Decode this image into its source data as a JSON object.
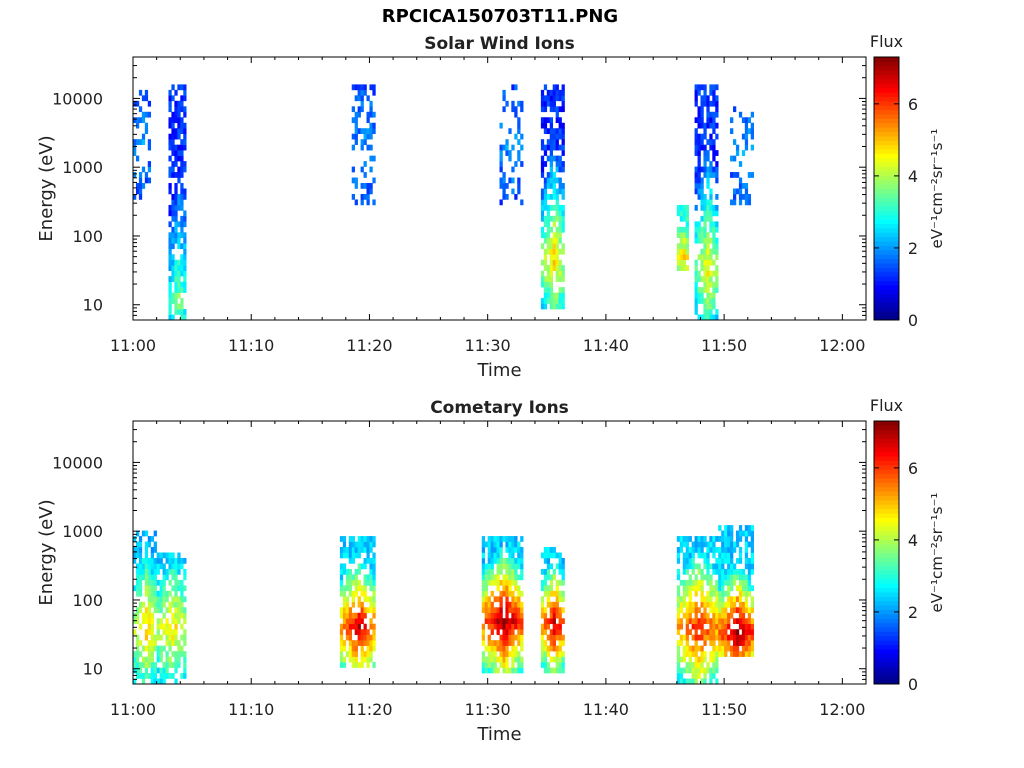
{
  "figure": {
    "title": "RPCICA150703T11.PNG"
  },
  "chart_data": [
    {
      "type": "heatmap",
      "title": "Solar Wind Ions",
      "xlabel": "Time",
      "ylabel": "Energy (eV)",
      "x_ticks": [
        "11:00",
        "11:10",
        "11:20",
        "11:30",
        "11:40",
        "11:50",
        "12:00"
      ],
      "x_range": [
        "11:00",
        "12:02"
      ],
      "y_scale": "log",
      "y_ticks": [
        10,
        100,
        1000,
        10000
      ],
      "y_range": [
        6,
        40000
      ],
      "colorbar": {
        "label": "Flux",
        "unit": "eV⁻¹cm⁻²sr⁻¹s⁻¹",
        "ticks": [
          0,
          2,
          4,
          6
        ],
        "range": [
          0,
          7.3
        ]
      },
      "bursts": [
        {
          "start": "11:00",
          "end": "11:01.5",
          "e_min": 300,
          "e_max": 15000,
          "flux_peak": 2.0,
          "flux_low": 1.4,
          "e_peak": 2000,
          "density": 0.35
        },
        {
          "start": "11:03",
          "end": "11:04.5",
          "e_min": 6,
          "e_max": 15000,
          "flux_peak": 3.6,
          "flux_low": 1.2,
          "e_peak": 12,
          "density": 0.75
        },
        {
          "start": "11:18.5",
          "end": "11:20.5",
          "e_min": 300,
          "e_max": 15000,
          "flux_peak": 2.0,
          "flux_low": 1.5,
          "e_peak": 2000,
          "density": 0.4
        },
        {
          "start": "11:31",
          "end": "11:33",
          "e_min": 300,
          "e_max": 15000,
          "flux_peak": 2.0,
          "flux_low": 1.4,
          "e_peak": 2000,
          "density": 0.35
        },
        {
          "start": "11:34.5",
          "end": "11:36.5",
          "e_min": 8,
          "e_max": 15000,
          "flux_peak": 4.9,
          "flux_low": 1.2,
          "e_peak": 45,
          "density": 0.75
        },
        {
          "start": "11:46",
          "end": "11:47",
          "e_min": 30,
          "e_max": 300,
          "flux_peak": 4.8,
          "flux_low": 3.0,
          "e_peak": 50,
          "density": 0.8
        },
        {
          "start": "11:47.5",
          "end": "11:49.5",
          "e_min": 6,
          "e_max": 15000,
          "flux_peak": 4.6,
          "flux_low": 1.2,
          "e_peak": 35,
          "density": 0.75
        },
        {
          "start": "11:50.5",
          "end": "11:52.5",
          "e_min": 300,
          "e_max": 8000,
          "flux_peak": 2.0,
          "flux_low": 1.5,
          "e_peak": 2000,
          "density": 0.35
        }
      ]
    },
    {
      "type": "heatmap",
      "title": "Cometary Ions",
      "xlabel": "Time",
      "ylabel": "Energy (eV)",
      "x_ticks": [
        "11:00",
        "11:10",
        "11:20",
        "11:30",
        "11:40",
        "11:50",
        "12:00"
      ],
      "x_range": [
        "11:00",
        "12:02"
      ],
      "y_scale": "log",
      "y_ticks": [
        10,
        100,
        1000,
        10000
      ],
      "y_range": [
        6,
        40000
      ],
      "colorbar": {
        "label": "Flux",
        "unit": "eV⁻¹cm⁻²sr⁻¹s⁻¹",
        "ticks": [
          0,
          2,
          4,
          6
        ],
        "range": [
          0,
          7.3
        ]
      },
      "bursts": [
        {
          "start": "11:00",
          "end": "11:02",
          "e_min": 6,
          "e_max": 1000,
          "flux_peak": 5.0,
          "flux_low": 2.2,
          "e_peak": 40,
          "density": 0.7
        },
        {
          "start": "11:02",
          "end": "11:04.5",
          "e_min": 6,
          "e_max": 500,
          "flux_peak": 4.8,
          "flux_low": 2.4,
          "e_peak": 40,
          "density": 0.7
        },
        {
          "start": "11:17.5",
          "end": "11:20.5",
          "e_min": 10,
          "e_max": 900,
          "flux_peak": 6.8,
          "flux_low": 2.4,
          "e_peak": 40,
          "density": 0.75
        },
        {
          "start": "11:29.5",
          "end": "11:33",
          "e_min": 8,
          "e_max": 900,
          "flux_peak": 7.3,
          "flux_low": 2.4,
          "e_peak": 50,
          "density": 0.8
        },
        {
          "start": "11:34.5",
          "end": "11:36.5",
          "e_min": 8,
          "e_max": 600,
          "flux_peak": 6.8,
          "flux_low": 2.4,
          "e_peak": 45,
          "density": 0.75
        },
        {
          "start": "11:46",
          "end": "11:49.5",
          "e_min": 6,
          "e_max": 900,
          "flux_peak": 6.4,
          "flux_low": 2.4,
          "e_peak": 40,
          "density": 0.75
        },
        {
          "start": "11:49.5",
          "end": "11:52.5",
          "e_min": 15,
          "e_max": 1200,
          "flux_peak": 7.3,
          "flux_low": 2.4,
          "e_peak": 35,
          "density": 0.8
        }
      ]
    }
  ]
}
